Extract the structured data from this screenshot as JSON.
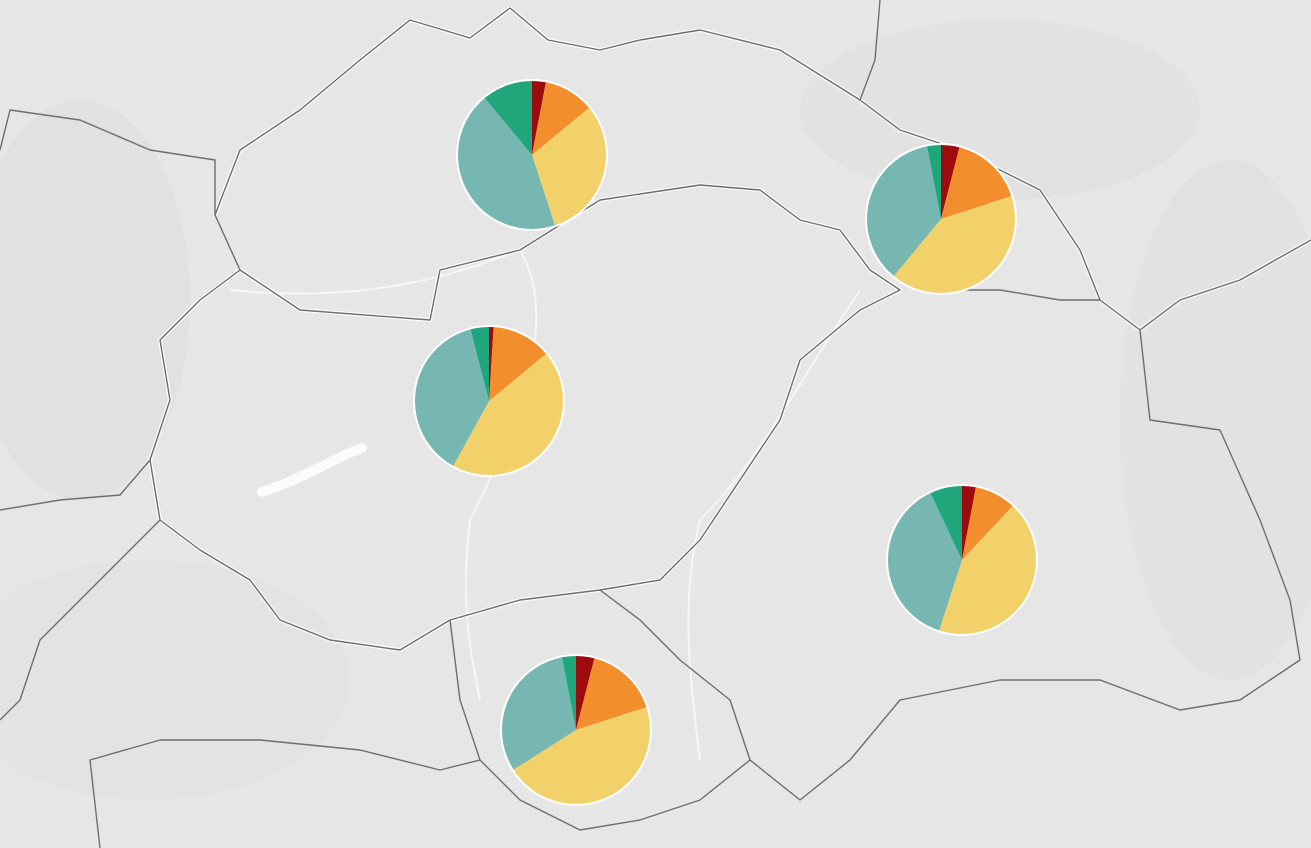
{
  "chart_data": [
    {
      "type": "pie",
      "values": [
        3,
        11,
        31,
        44,
        11
      ],
      "colors": [
        "#9e0b0f",
        "#f28e2b",
        "#f2d16b",
        "#76b7b2",
        "#1fa67a"
      ]
    },
    {
      "type": "pie",
      "values": [
        4,
        16,
        41,
        36,
        3
      ],
      "colors": [
        "#9e0b0f",
        "#f28e2b",
        "#f2d16b",
        "#76b7b2",
        "#1fa67a"
      ]
    },
    {
      "type": "pie",
      "values": [
        1,
        13,
        44,
        38,
        4
      ],
      "colors": [
        "#9e0b0f",
        "#f28e2b",
        "#f2d16b",
        "#76b7b2",
        "#1fa67a"
      ]
    },
    {
      "type": "pie",
      "values": [
        3,
        9,
        43,
        38,
        7
      ],
      "colors": [
        "#9e0b0f",
        "#f28e2b",
        "#f2d16b",
        "#76b7b2",
        "#1fa67a"
      ]
    },
    {
      "type": "pie",
      "values": [
        4,
        16,
        46,
        31,
        3
      ],
      "colors": [
        "#9e0b0f",
        "#f28e2b",
        "#f2d16b",
        "#76b7b2",
        "#1fa67a"
      ]
    }
  ]
}
